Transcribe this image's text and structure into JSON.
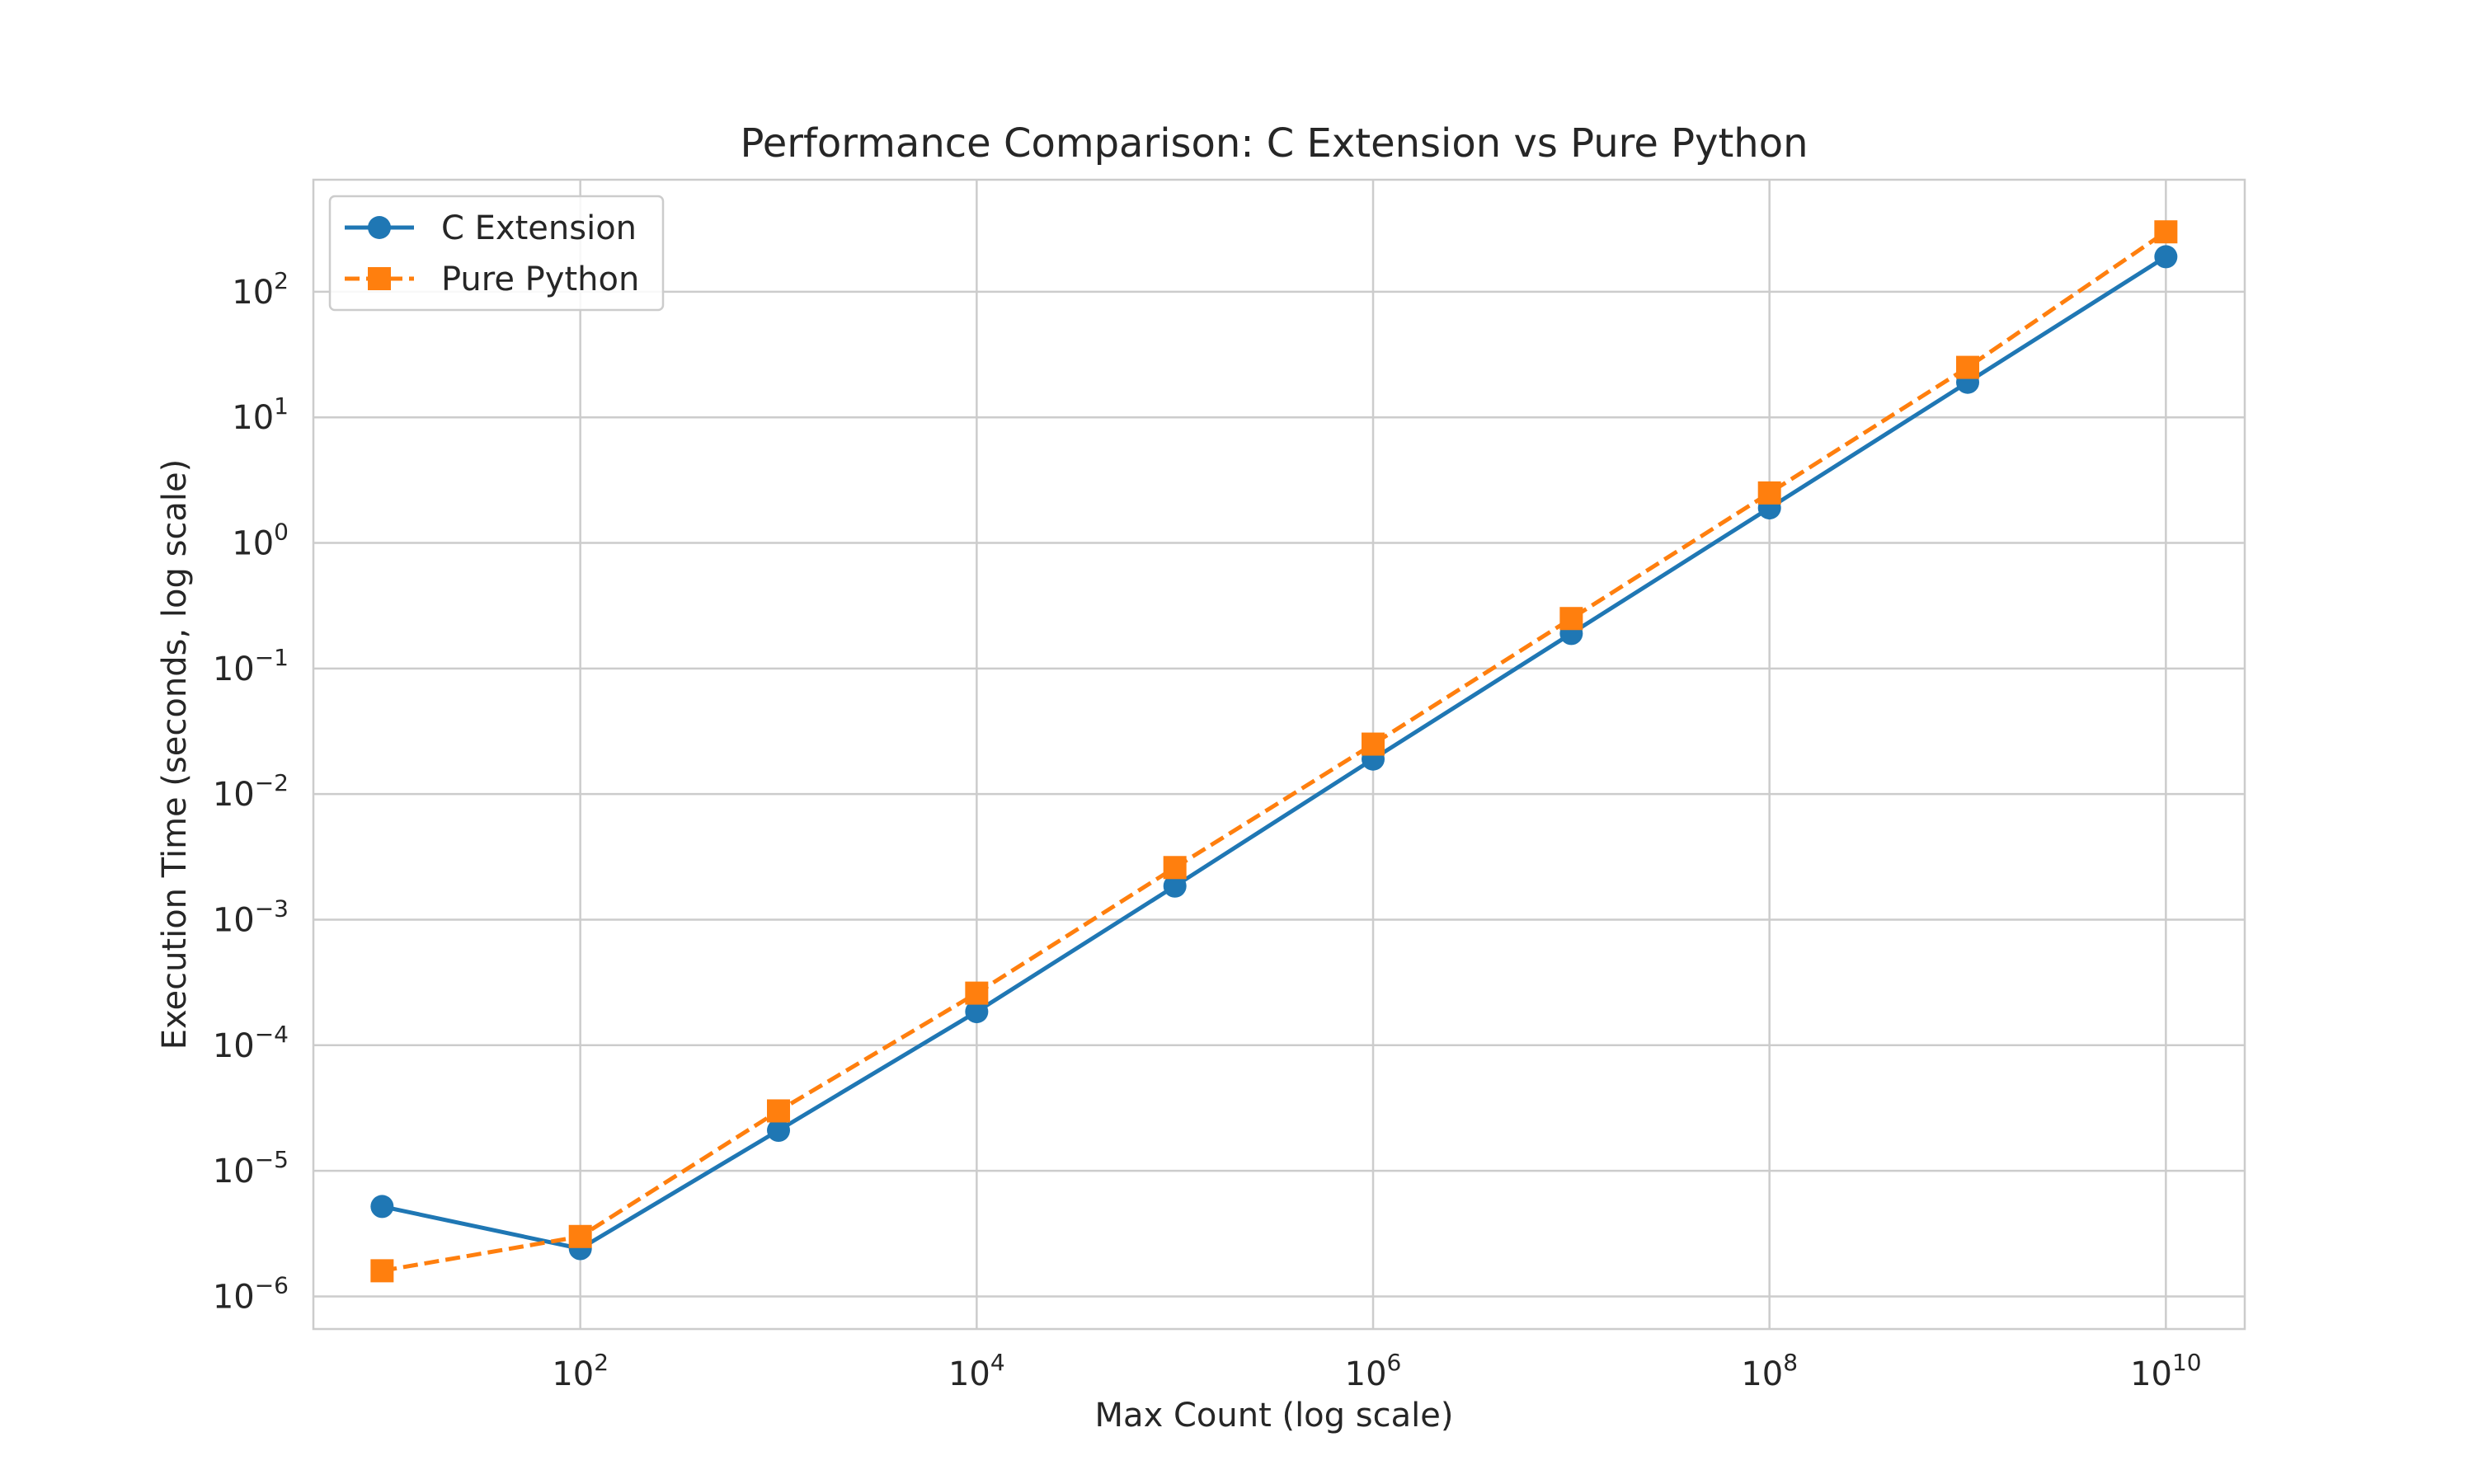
{
  "chart_data": {
    "type": "line",
    "title": "Performance Comparison: C Extension vs Pure Python",
    "xlabel": "Max Count (log scale)",
    "ylabel": "Execution Time (seconds, log scale)",
    "xscale": "log",
    "yscale": "log",
    "xlim": [
      4.5,
      25000000000
    ],
    "ylim": [
      5.5e-07,
      780
    ],
    "x": [
      10,
      100,
      1000,
      10000,
      100000,
      1000000,
      10000000,
      100000000,
      1000000000,
      10000000000
    ],
    "x_ticks": [
      {
        "value": 100,
        "base": "10",
        "exp": "2"
      },
      {
        "value": 10000,
        "base": "10",
        "exp": "4"
      },
      {
        "value": 1000000,
        "base": "10",
        "exp": "6"
      },
      {
        "value": 100000000,
        "base": "10",
        "exp": "8"
      },
      {
        "value": 10000000000,
        "base": "10",
        "exp": "10"
      }
    ],
    "y_ticks": [
      {
        "value": 1e-06,
        "base": "10",
        "exp": "−6"
      },
      {
        "value": 1e-05,
        "base": "10",
        "exp": "−5"
      },
      {
        "value": 0.0001,
        "base": "10",
        "exp": "−4"
      },
      {
        "value": 0.001,
        "base": "10",
        "exp": "−3"
      },
      {
        "value": 0.01,
        "base": "10",
        "exp": "−2"
      },
      {
        "value": 0.1,
        "base": "10",
        "exp": "−1"
      },
      {
        "value": 1,
        "base": "10",
        "exp": "0"
      },
      {
        "value": 10,
        "base": "10",
        "exp": "1"
      },
      {
        "value": 100,
        "base": "10",
        "exp": "2"
      }
    ],
    "grid": true,
    "legend_position": "top-left",
    "series": [
      {
        "name": "C Extension",
        "color": "#1f77b4",
        "marker": "circle",
        "line_style": "solid",
        "values": [
          5.2e-06,
          2.4e-06,
          2.1e-05,
          0.000185,
          0.00185,
          0.019,
          0.19,
          1.9,
          19,
          190
        ]
      },
      {
        "name": "Pure Python",
        "color": "#ff7f0e",
        "marker": "square",
        "line_style": "dashed",
        "values": [
          1.6e-06,
          3e-06,
          3e-05,
          0.00026,
          0.0026,
          0.025,
          0.25,
          2.5,
          25,
          300
        ]
      }
    ]
  }
}
